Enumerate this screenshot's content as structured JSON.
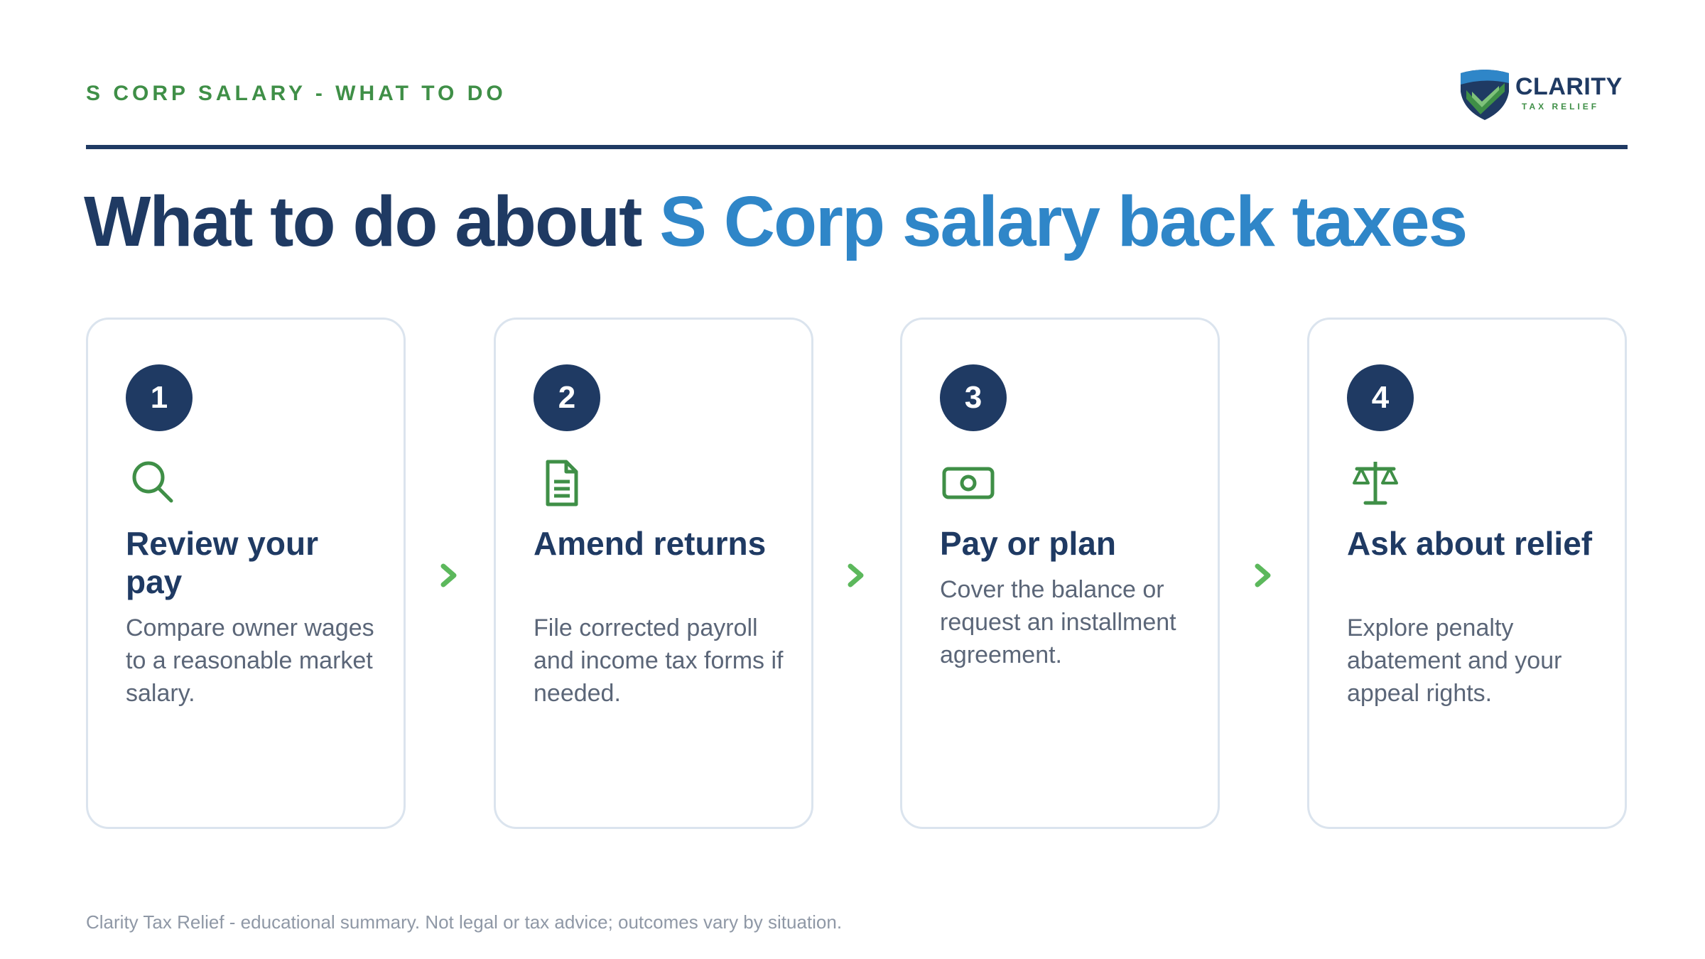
{
  "header": {
    "eyebrow": "S CORP SALARY - WHAT TO DO",
    "logo": {
      "wordmark": "CLARITY",
      "tagline": "TAX RELIEF"
    }
  },
  "headline": {
    "lead": "What to do about",
    "accent": "S Corp salary back taxes"
  },
  "steps": [
    {
      "number": "1",
      "icon": "search-icon",
      "title": "Review your pay",
      "description": "Compare owner wages to a reasonable market salary."
    },
    {
      "number": "2",
      "icon": "document-icon",
      "title": "Amend returns",
      "description": "File corrected payroll and income tax forms if needed."
    },
    {
      "number": "3",
      "icon": "cash-icon",
      "title": "Pay or plan",
      "description": "Cover the balance or request an installment agreement."
    },
    {
      "number": "4",
      "icon": "scales-icon",
      "title": "Ask about relief",
      "description": "Explore penalty abatement and your appeal rights."
    }
  ],
  "footer": "Clarity Tax Relief - educational summary. Not legal or tax advice; outcomes vary by situation.",
  "colors": {
    "navy": "#1f3a63",
    "accent_blue": "#2f86c8",
    "green": "#3f8f47",
    "arrow_green": "#5cb85c",
    "body_gray": "#5b6678",
    "footer_gray": "#8f98a6",
    "card_border": "#dbe4ee"
  }
}
